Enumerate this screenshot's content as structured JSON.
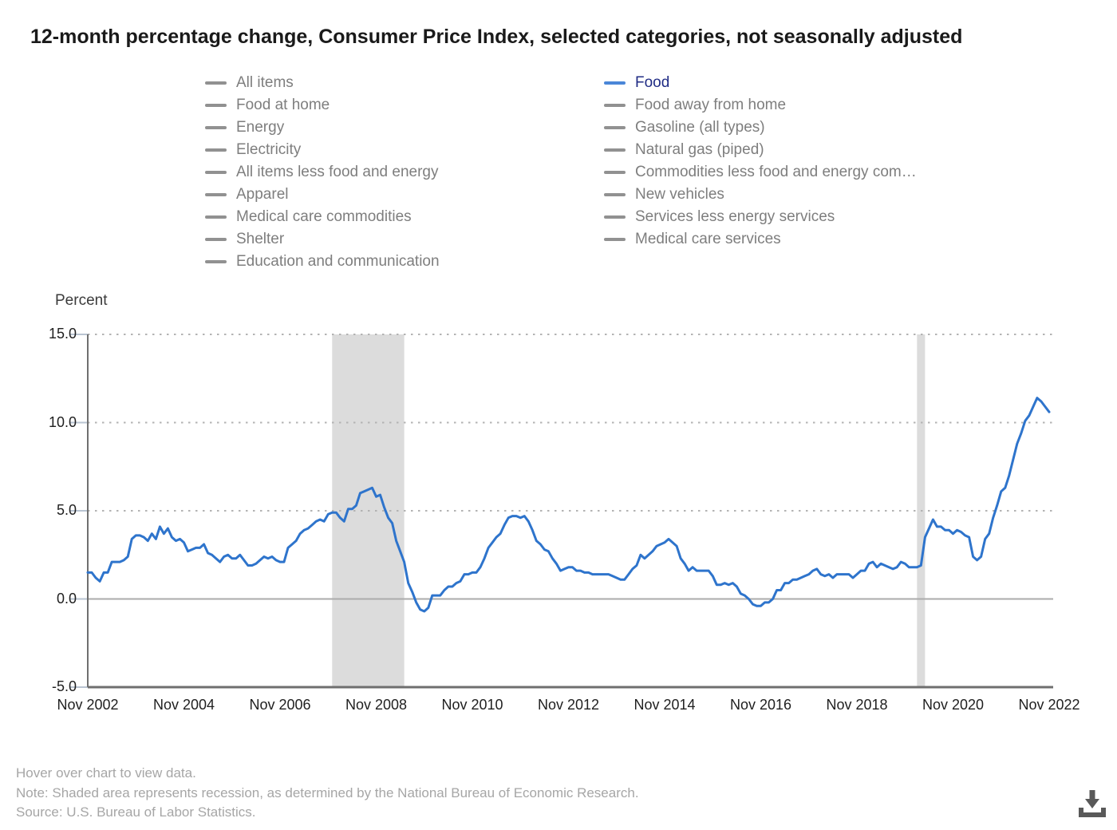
{
  "title": "12-month percentage change, Consumer Price Index, selected categories, not seasonally adjusted",
  "legend": {
    "columns": [
      {
        "items": [
          {
            "label": "All items",
            "selected": false
          },
          {
            "label": "Food at home",
            "selected": false
          },
          {
            "label": "Energy",
            "selected": false
          },
          {
            "label": "Electricity",
            "selected": false
          },
          {
            "label": "All items less food and energy",
            "selected": false
          },
          {
            "label": "Apparel",
            "selected": false
          },
          {
            "label": "Medical care commodities",
            "selected": false
          },
          {
            "label": "Shelter",
            "selected": false
          },
          {
            "label": "Education and communication",
            "selected": false
          }
        ]
      },
      {
        "items": [
          {
            "label": "Food",
            "selected": true
          },
          {
            "label": "Food away from home",
            "selected": false
          },
          {
            "label": "Gasoline (all types)",
            "selected": false
          },
          {
            "label": "Natural gas (piped)",
            "selected": false
          },
          {
            "label": "Commodities less food and energy com…",
            "selected": false
          },
          {
            "label": "New vehicles",
            "selected": false
          },
          {
            "label": "Services less energy services",
            "selected": false
          },
          {
            "label": "Medical care services",
            "selected": false
          }
        ]
      }
    ]
  },
  "colors": {
    "series_line": "#2e74cc",
    "selected_swatch": "#4a86d8",
    "selected_text": "#202c85",
    "legend_gray_swatch": "#919191",
    "legend_gray_text": "#7e7e7e",
    "recession_band": "#dcdcdc",
    "gridline": "#b3b3b3",
    "zero_line": "#ababab",
    "axis": "#6f6f6f",
    "tick_mark": "#b9c4d2",
    "download_icon": "#595959"
  },
  "y_axis": {
    "label": "Percent",
    "ticks": [
      "15.0",
      "10.0",
      "5.0",
      "0.0",
      "-5.0"
    ]
  },
  "x_axis": {
    "ticks": [
      "Nov 2002",
      "Nov 2004",
      "Nov 2006",
      "Nov 2008",
      "Nov 2010",
      "Nov 2012",
      "Nov 2014",
      "Nov 2016",
      "Nov 2018",
      "Nov 2020",
      "Nov 2022"
    ]
  },
  "footer": {
    "lines": [
      "Hover over chart to view data.",
      "Note: Shaded area represents recession, as determined by the National Bureau of Economic Research.",
      "Source: U.S. Bureau of Labor Statistics."
    ]
  },
  "chart_data": {
    "type": "line",
    "title": "12-month percentage change, Consumer Price Index, selected categories, not seasonally adjusted",
    "series_name": "Food",
    "ylabel": "Percent",
    "ylim": [
      -5,
      15
    ],
    "y_gridlines": [
      15,
      10,
      5
    ],
    "zero_line": true,
    "frequency": "monthly",
    "x_start": "2002-11",
    "x_end": "2022-11",
    "legend_position": "top",
    "values": [
      1.5,
      1.5,
      1.2,
      1.0,
      1.5,
      1.5,
      2.1,
      2.1,
      2.1,
      2.2,
      2.4,
      3.4,
      3.6,
      3.6,
      3.5,
      3.3,
      3.7,
      3.4,
      4.1,
      3.7,
      4.0,
      3.5,
      3.3,
      3.4,
      3.2,
      2.7,
      2.8,
      2.9,
      2.9,
      3.1,
      2.6,
      2.5,
      2.3,
      2.1,
      2.4,
      2.5,
      2.3,
      2.3,
      2.5,
      2.2,
      1.9,
      1.9,
      2.0,
      2.2,
      2.4,
      2.3,
      2.4,
      2.2,
      2.1,
      2.1,
      2.9,
      3.1,
      3.3,
      3.7,
      3.9,
      4.0,
      4.2,
      4.4,
      4.5,
      4.4,
      4.8,
      4.9,
      4.9,
      4.6,
      4.4,
      5.1,
      5.1,
      5.3,
      6.0,
      6.1,
      6.2,
      6.3,
      5.8,
      5.9,
      5.2,
      4.6,
      4.3,
      3.3,
      2.7,
      2.1,
      0.9,
      0.4,
      -0.2,
      -0.6,
      -0.7,
      -0.5,
      0.2,
      0.2,
      0.2,
      0.5,
      0.7,
      0.7,
      0.9,
      1.0,
      1.4,
      1.4,
      1.5,
      1.5,
      1.8,
      2.3,
      2.9,
      3.2,
      3.5,
      3.7,
      4.2,
      4.6,
      4.7,
      4.7,
      4.6,
      4.7,
      4.4,
      3.9,
      3.3,
      3.1,
      2.8,
      2.7,
      2.3,
      2.0,
      1.6,
      1.7,
      1.8,
      1.8,
      1.6,
      1.6,
      1.5,
      1.5,
      1.4,
      1.4,
      1.4,
      1.4,
      1.4,
      1.3,
      1.2,
      1.1,
      1.1,
      1.4,
      1.7,
      1.9,
      2.5,
      2.3,
      2.5,
      2.7,
      3.0,
      3.1,
      3.2,
      3.4,
      3.2,
      3.0,
      2.3,
      2.0,
      1.6,
      1.8,
      1.6,
      1.6,
      1.6,
      1.6,
      1.3,
      0.8,
      0.8,
      0.9,
      0.8,
      0.9,
      0.7,
      0.3,
      0.2,
      0.0,
      -0.3,
      -0.4,
      -0.4,
      -0.2,
      -0.2,
      0.0,
      0.5,
      0.5,
      0.9,
      0.9,
      1.1,
      1.1,
      1.2,
      1.3,
      1.4,
      1.6,
      1.7,
      1.4,
      1.3,
      1.4,
      1.2,
      1.4,
      1.4,
      1.4,
      1.4,
      1.2,
      1.4,
      1.6,
      1.6,
      2.0,
      2.1,
      1.8,
      2.0,
      1.9,
      1.8,
      1.7,
      1.8,
      2.1,
      2.0,
      1.8,
      1.8,
      1.8,
      1.9,
      3.5,
      4.0,
      4.5,
      4.1,
      4.1,
      3.9,
      3.9,
      3.7,
      3.9,
      3.8,
      3.6,
      3.5,
      2.4,
      2.2,
      2.4,
      3.4,
      3.7,
      4.6,
      5.3,
      6.1,
      6.3,
      7.0,
      7.9,
      8.8,
      9.4,
      10.1,
      10.4,
      10.9,
      11.4,
      11.2,
      10.9,
      10.6
    ],
    "recessions": [
      {
        "start": "2007-12",
        "end": "2009-06"
      },
      {
        "start": "2020-02",
        "end": "2020-04"
      }
    ]
  }
}
